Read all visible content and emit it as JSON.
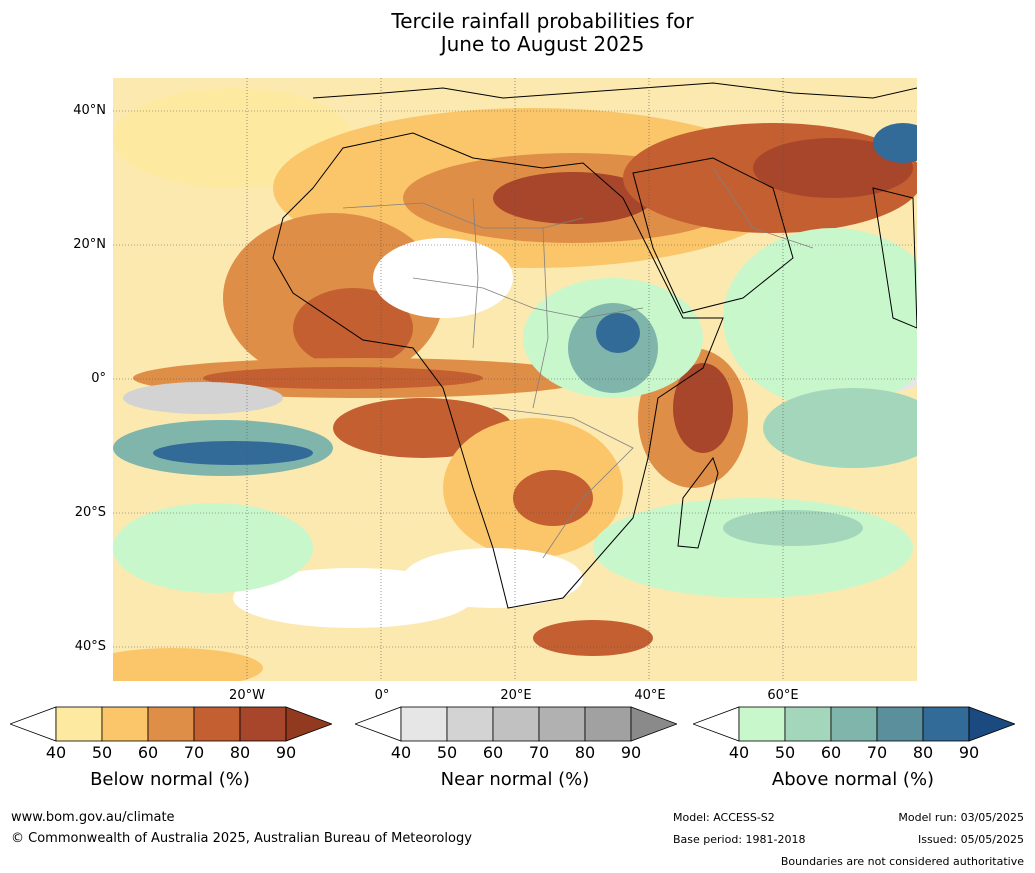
{
  "title_line1": "Tercile rainfall probabilities for",
  "title_line2": "June to August 2025",
  "lat_labels": [
    "40°N",
    "20°N",
    "0°",
    "20°S",
    "40°S"
  ],
  "lon_labels": [
    "20°W",
    "0°",
    "20°E",
    "40°E",
    "60°E"
  ],
  "colorbars": [
    {
      "title": "Below normal (%)",
      "ticks": [
        "40",
        "50",
        "60",
        "70",
        "80",
        "90"
      ],
      "colors": [
        "#ffffff",
        "#fdeaa0",
        "#fbc66a",
        "#df8e47",
        "#c35f30",
        "#a7462a",
        "#923a20"
      ]
    },
    {
      "title": "Near normal (%)",
      "ticks": [
        "40",
        "50",
        "60",
        "70",
        "80",
        "90"
      ],
      "colors": [
        "#ffffff",
        "#e6e6e6",
        "#d3d3d3",
        "#c1c1c1",
        "#b1b1b1",
        "#a1a1a1",
        "#8a8a8a"
      ]
    },
    {
      "title": "Above normal (%)",
      "ticks": [
        "40",
        "50",
        "60",
        "70",
        "80",
        "90"
      ],
      "colors": [
        "#ffffff",
        "#c9f7cc",
        "#a3d6bb",
        "#7fb5ab",
        "#5b8f9c",
        "#326a98",
        "#1a4a80"
      ]
    }
  ],
  "footer": {
    "url": "www.bom.gov.au/climate",
    "copyright": "© Commonwealth of Australia 2025, Australian Bureau of Meteorology",
    "model": "Model: ACCESS-S2",
    "base_period": "Base period: 1981-2018",
    "model_run": "Model run: 03/05/2025",
    "issued": "Issued: 05/05/2025",
    "disclaimer": "Boundaries are not considered authoritative"
  },
  "palette": {
    "land_outline": "#000000",
    "borders": "#808080",
    "grid": "#555555"
  }
}
